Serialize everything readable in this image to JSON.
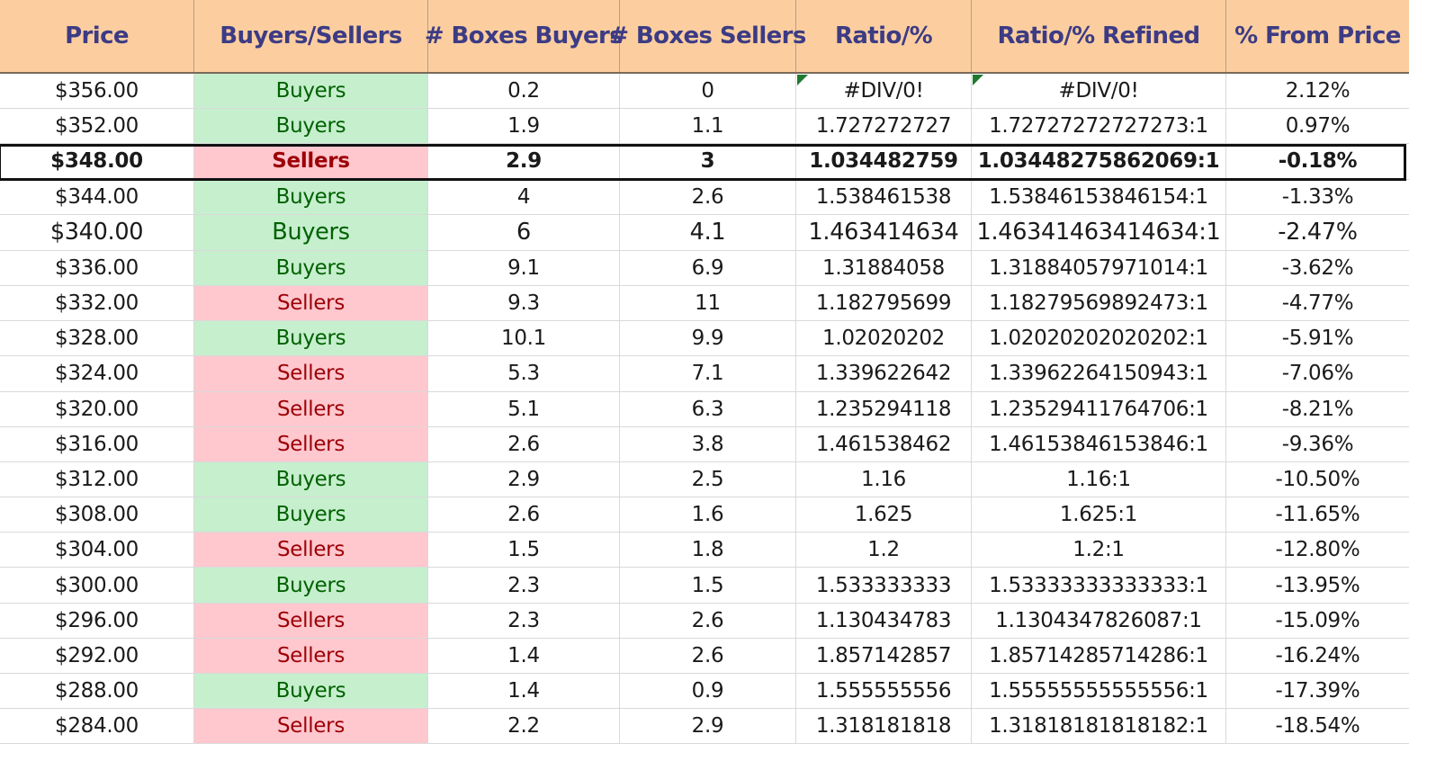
{
  "headers": [
    "Price",
    "Buyers/Sellers",
    "# Boxes Buyers",
    "# Boxes Sellers",
    "Ratio/%",
    "Ratio/% Refined",
    "% From Price"
  ],
  "rows": [
    {
      "price": "$356.00",
      "side": "Buyers",
      "buyers": "0.2",
      "sellers": "0",
      "ratio": "#DIV/0!",
      "refined": "#DIV/0!",
      "from_price": "2.12%"
    },
    {
      "price": "$352.00",
      "side": "Buyers",
      "buyers": "1.9",
      "sellers": "1.1",
      "ratio": "1.727272727",
      "refined": "1.72727272727273:1",
      "from_price": "0.97%"
    },
    {
      "price": "$348.00",
      "side": "Sellers",
      "buyers": "2.9",
      "sellers": "3",
      "ratio": "1.034482759",
      "refined": "1.03448275862069:1",
      "from_price": "-0.18%"
    },
    {
      "price": "$344.00",
      "side": "Buyers",
      "buyers": "4",
      "sellers": "2.6",
      "ratio": "1.538461538",
      "refined": "1.53846153846154:1",
      "from_price": "-1.33%"
    },
    {
      "price": "$340.00",
      "side": "Buyers",
      "buyers": "6",
      "sellers": "4.1",
      "ratio": "1.463414634",
      "refined": "1.46341463414634:1",
      "from_price": "-2.47%"
    },
    {
      "price": "$336.00",
      "side": "Buyers",
      "buyers": "9.1",
      "sellers": "6.9",
      "ratio": "1.31884058",
      "refined": "1.31884057971014:1",
      "from_price": "-3.62%"
    },
    {
      "price": "$332.00",
      "side": "Sellers",
      "buyers": "9.3",
      "sellers": "11",
      "ratio": "1.182795699",
      "refined": "1.18279569892473:1",
      "from_price": "-4.77%"
    },
    {
      "price": "$328.00",
      "side": "Buyers",
      "buyers": "10.1",
      "sellers": "9.9",
      "ratio": "1.02020202",
      "refined": "1.02020202020202:1",
      "from_price": "-5.91%"
    },
    {
      "price": "$324.00",
      "side": "Sellers",
      "buyers": "5.3",
      "sellers": "7.1",
      "ratio": "1.339622642",
      "refined": "1.33962264150943:1",
      "from_price": "-7.06%"
    },
    {
      "price": "$320.00",
      "side": "Sellers",
      "buyers": "5.1",
      "sellers": "6.3",
      "ratio": "1.235294118",
      "refined": "1.23529411764706:1",
      "from_price": "-8.21%"
    },
    {
      "price": "$316.00",
      "side": "Sellers",
      "buyers": "2.6",
      "sellers": "3.8",
      "ratio": "1.461538462",
      "refined": "1.46153846153846:1",
      "from_price": "-9.36%"
    },
    {
      "price": "$312.00",
      "side": "Buyers",
      "buyers": "2.9",
      "sellers": "2.5",
      "ratio": "1.16",
      "refined": "1.16:1",
      "from_price": "-10.50%"
    },
    {
      "price": "$308.00",
      "side": "Buyers",
      "buyers": "2.6",
      "sellers": "1.6",
      "ratio": "1.625",
      "refined": "1.625:1",
      "from_price": "-11.65%"
    },
    {
      "price": "$304.00",
      "side": "Sellers",
      "buyers": "1.5",
      "sellers": "1.8",
      "ratio": "1.2",
      "refined": "1.2:1",
      "from_price": "-12.80%"
    },
    {
      "price": "$300.00",
      "side": "Buyers",
      "buyers": "2.3",
      "sellers": "1.5",
      "ratio": "1.533333333",
      "refined": "1.53333333333333:1",
      "from_price": "-13.95%"
    },
    {
      "price": "$296.00",
      "side": "Sellers",
      "buyers": "2.3",
      "sellers": "2.6",
      "ratio": "1.130434783",
      "refined": "1.1304347826087:1",
      "from_price": "-15.09%"
    },
    {
      "price": "$292.00",
      "side": "Sellers",
      "buyers": "1.4",
      "sellers": "2.6",
      "ratio": "1.857142857",
      "refined": "1.85714285714286:1",
      "from_price": "-16.24%"
    },
    {
      "price": "$288.00",
      "side": "Buyers",
      "buyers": "1.4",
      "sellers": "0.9",
      "ratio": "1.555555556",
      "refined": "1.55555555555556:1",
      "from_price": "-17.39%"
    },
    {
      "price": "$284.00",
      "side": "Sellers",
      "buyers": "2.2",
      "sellers": "2.9",
      "ratio": "1.318181818",
      "refined": "1.31818181818182:1",
      "from_price": "-18.54%"
    }
  ],
  "colors": {
    "header_bg": "#fcce9f",
    "header_text": "#3c3b84",
    "buyers_bg": "#c6efce",
    "buyers_text": "#006100",
    "sellers_bg": "#ffc7ce",
    "sellers_text": "#9c0006",
    "error_flag": "#1f7a2f"
  }
}
